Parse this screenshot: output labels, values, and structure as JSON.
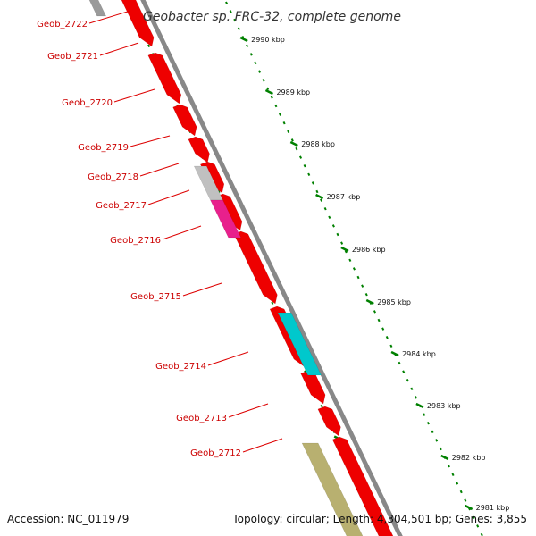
{
  "title": "Geobacter sp. FRC-32, complete genome",
  "footer": {
    "accession": "Accession: NC_011979",
    "summary": "Topology: circular; Length: 4,304,501 bp; Genes: 3,855"
  },
  "colors": {
    "forward_gene": "#ee0000",
    "backbone": "#888888",
    "label_line": "#dd0000",
    "tick": "#008000",
    "gray_gene": "#c0c0c0",
    "pink_gene": "#e8208c",
    "cyan_gene": "#00c8cc",
    "khaki_gene": "#b8b070"
  },
  "kbp_labels": [
    "2990 kbp",
    "2989 kbp",
    "2988 kbp",
    "2987 kbp",
    "2986 kbp",
    "2985 kbp",
    "2984 kbp",
    "2983 kbp",
    "2982 kbp",
    "2981 kbp"
  ],
  "genes": [
    {
      "label": "Geob_2722",
      "color": "forward_gene"
    },
    {
      "label": "Geob_2721",
      "color": "forward_gene"
    },
    {
      "label": "Geob_2720",
      "color": "forward_gene"
    },
    {
      "label": "Geob_2719",
      "color": "forward_gene"
    },
    {
      "label": "Geob_2718",
      "color": "gray_gene"
    },
    {
      "label": "Geob_2717",
      "color": "pink_gene"
    },
    {
      "label": "Geob_2716",
      "color": "forward_gene"
    },
    {
      "label": "Geob_2715",
      "color": "forward_gene"
    },
    {
      "label": "Geob_2714",
      "color": "cyan_gene"
    },
    {
      "label": "Geob_2713",
      "color": "forward_gene"
    },
    {
      "label": "Geob_2712",
      "color": "khaki_gene"
    }
  ]
}
